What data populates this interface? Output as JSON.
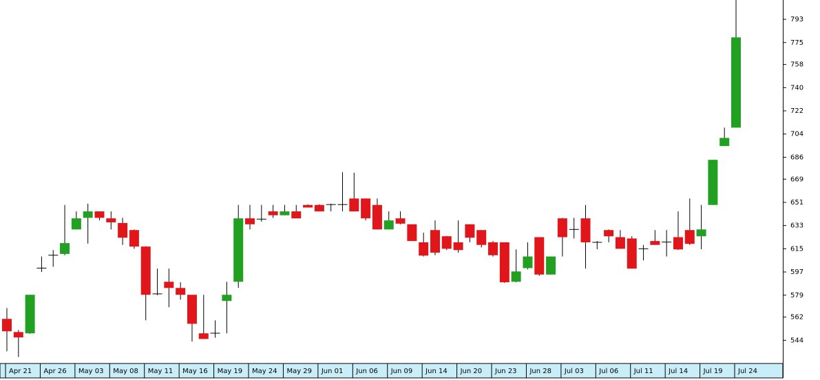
{
  "chart_data": {
    "type": "candlestick",
    "categories": [
      "Apr 21",
      null,
      null,
      "Apr 26",
      null,
      null,
      "May 03",
      null,
      null,
      "May 08",
      null,
      null,
      "May 11",
      null,
      null,
      "May 16",
      null,
      null,
      "May 19",
      null,
      null,
      "May 24",
      null,
      null,
      "May 29",
      null,
      null,
      "Jun 01",
      null,
      null,
      "Jun 06",
      null,
      null,
      "Jun 09",
      null,
      null,
      "Jun 14",
      null,
      null,
      "Jun 20",
      null,
      null,
      "Jun 23",
      null,
      null,
      "Jun 28",
      null,
      null,
      "Jul 03",
      null,
      null,
      "Jul 06",
      null,
      null,
      "Jul 11",
      null,
      null,
      "Jul 14",
      null,
      null,
      "Jul 19",
      null,
      null,
      "Jul 24"
    ],
    "open": [
      560.6,
      550.4,
      549.4,
      599,
      609,
      611,
      630,
      639,
      644,
      638.6,
      635,
      629.5,
      616.7,
      580,
      589.4,
      584.6,
      579.3,
      549.4,
      549,
      574.5,
      589.4,
      638.6,
      637,
      644,
      641,
      644,
      649,
      649,
      649,
      649.3,
      654,
      654,
      649,
      630,
      638.6,
      634,
      620,
      629.5,
      624.7,
      620,
      634,
      629.5,
      620,
      620,
      589.4,
      600,
      624,
      595,
      638.6,
      629,
      638.6,
      620,
      629.5,
      624,
      623,
      615,
      621,
      620,
      624,
      629.5,
      624.7,
      649,
      694.7,
      709
    ],
    "high": [
      569,
      552,
      579.3,
      609,
      614,
      649,
      644,
      650,
      644,
      644,
      639,
      630,
      617,
      599.6,
      599.6,
      589,
      579,
      579.3,
      559.5,
      589.4,
      649,
      649,
      649,
      649,
      649,
      649,
      649.5,
      649.5,
      650,
      674.4,
      674,
      654,
      654,
      644,
      644,
      634,
      627.5,
      637,
      625,
      637,
      634,
      629.5,
      621,
      620,
      614.5,
      620,
      624,
      609,
      639,
      639,
      649,
      621,
      630,
      629.5,
      624.7,
      618,
      629.5,
      629.5,
      644,
      654,
      649,
      684,
      709,
      808
    ],
    "low": [
      535.5,
      531,
      549,
      597,
      601,
      610,
      630,
      619,
      637,
      630,
      618,
      615,
      559.5,
      579,
      569.7,
      575.5,
      543,
      545,
      546,
      549.4,
      584.6,
      630,
      636,
      639,
      641,
      638.6,
      647,
      644,
      644,
      644,
      644,
      637,
      630,
      630,
      634,
      621,
      609,
      610,
      614,
      612,
      620,
      616,
      609,
      588.6,
      589,
      599,
      594,
      595,
      609,
      623,
      599.6,
      614.6,
      620,
      615,
      599.6,
      606,
      618,
      609,
      614,
      618,
      614.6,
      649,
      694.7,
      709
    ],
    "close": [
      551,
      546.2,
      579.3,
      600,
      610,
      619.4,
      638.6,
      644,
      639,
      635.5,
      623.6,
      616.7,
      579.3,
      579,
      584.6,
      579.3,
      556.8,
      545,
      549.5,
      579.3,
      638.6,
      634,
      638,
      641,
      644,
      638.6,
      647,
      644,
      649.3,
      649,
      644,
      638.6,
      630,
      637,
      634.5,
      621,
      609.7,
      612,
      615,
      614,
      623.6,
      618,
      610,
      589,
      597.4,
      609,
      595,
      609,
      624,
      630,
      620,
      619.7,
      624.7,
      615,
      599.6,
      614.5,
      618,
      620.2,
      614.5,
      618.8,
      630,
      684,
      701,
      779
    ],
    "up_color": "#22a022",
    "down_color": "#e0161b",
    "ylim": [
      526,
      808
    ],
    "yticks": [
      544,
      562,
      579,
      597,
      615,
      633,
      651,
      669,
      686,
      704,
      722,
      740,
      758,
      775,
      793
    ]
  }
}
